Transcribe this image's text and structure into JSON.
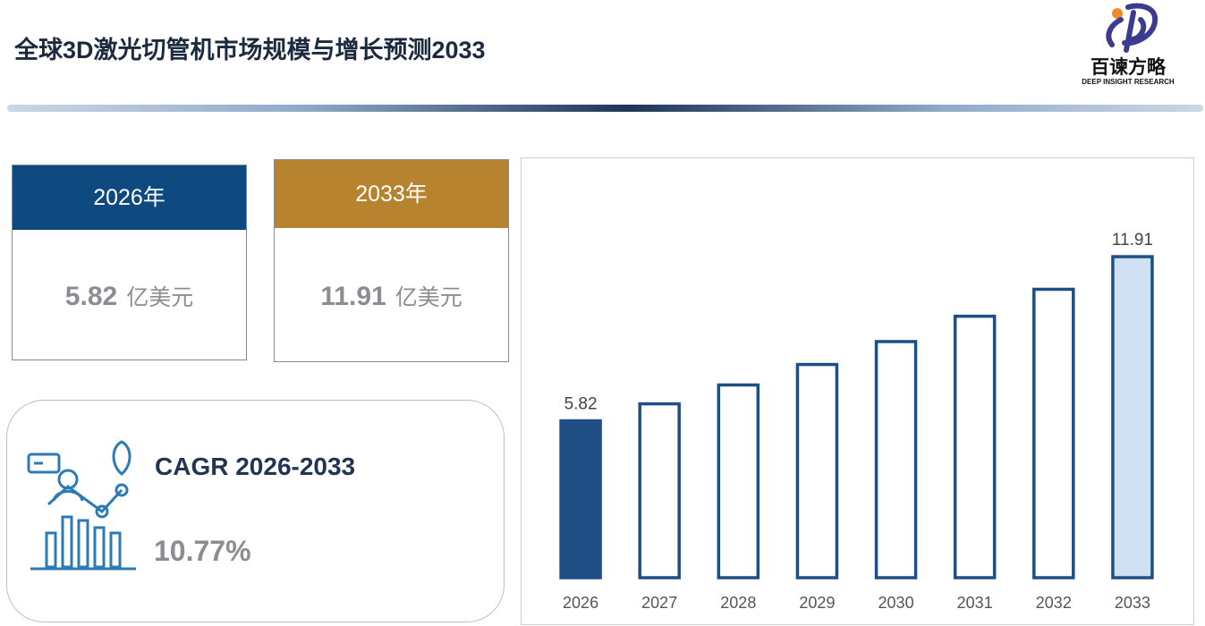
{
  "header": {
    "title": "全球3D激光切管机市场规模与增长预测2033"
  },
  "logo": {
    "name": "百谏方略",
    "tagline": "DEEP INSIGHT RESEARCH"
  },
  "cards": [
    {
      "year": "2026年",
      "value": "5.82",
      "unit": "亿美元"
    },
    {
      "year": "2033年",
      "value": "11.91",
      "unit": "亿美元"
    }
  ],
  "cagr": {
    "label": "CAGR 2026-2033",
    "value": "10.77%"
  },
  "chart_data": {
    "type": "bar",
    "categories": [
      "2026",
      "2027",
      "2028",
      "2029",
      "2030",
      "2031",
      "2032",
      "2033"
    ],
    "values": [
      5.82,
      6.45,
      7.15,
      7.91,
      8.76,
      9.7,
      10.7,
      11.91
    ],
    "value_labels": [
      "5.82",
      null,
      null,
      null,
      null,
      null,
      null,
      "11.91"
    ],
    "colors": [
      "#1f4e85",
      "#ffffff",
      "#ffffff",
      "#ffffff",
      "#ffffff",
      "#ffffff",
      "#ffffff",
      "#cfe0f3"
    ],
    "edge_color": "#1f4e85"
  }
}
